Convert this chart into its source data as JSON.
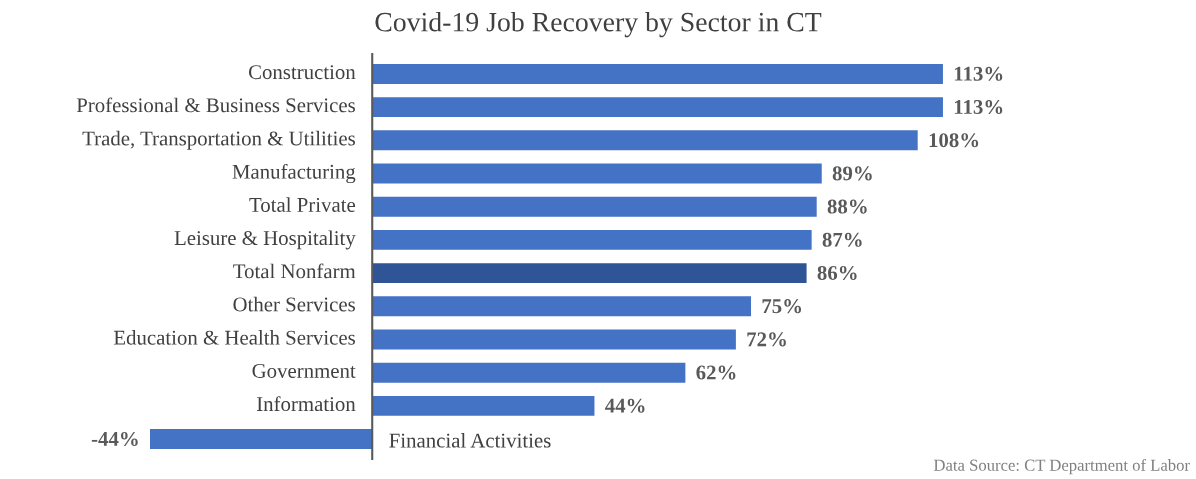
{
  "chart_data": {
    "type": "bar",
    "orientation": "horizontal",
    "title": "Covid-19 Job Recovery by Sector in CT",
    "categories": [
      "Construction",
      "Professional & Business Services",
      "Trade, Transportation & Utilities",
      "Manufacturing",
      "Total Private",
      "Leisure & Hospitality",
      "Total Nonfarm",
      "Other Services",
      "Education & Health Services",
      "Government",
      "Information",
      "Financial Activities"
    ],
    "values": [
      113,
      113,
      108,
      89,
      88,
      87,
      86,
      75,
      72,
      62,
      44,
      -44
    ],
    "value_labels": [
      "113%",
      "113%",
      "108%",
      "89%",
      "88%",
      "87%",
      "86%",
      "75%",
      "72%",
      "62%",
      "44%",
      "-44%"
    ],
    "colors": [
      "#4472c4",
      "#4472c4",
      "#4472c4",
      "#4472c4",
      "#4472c4",
      "#4472c4",
      "#2f5597",
      "#4472c4",
      "#4472c4",
      "#4472c4",
      "#4472c4",
      "#4472c4"
    ],
    "annotations": [
      "Data Source: CT Department of Labor"
    ]
  }
}
